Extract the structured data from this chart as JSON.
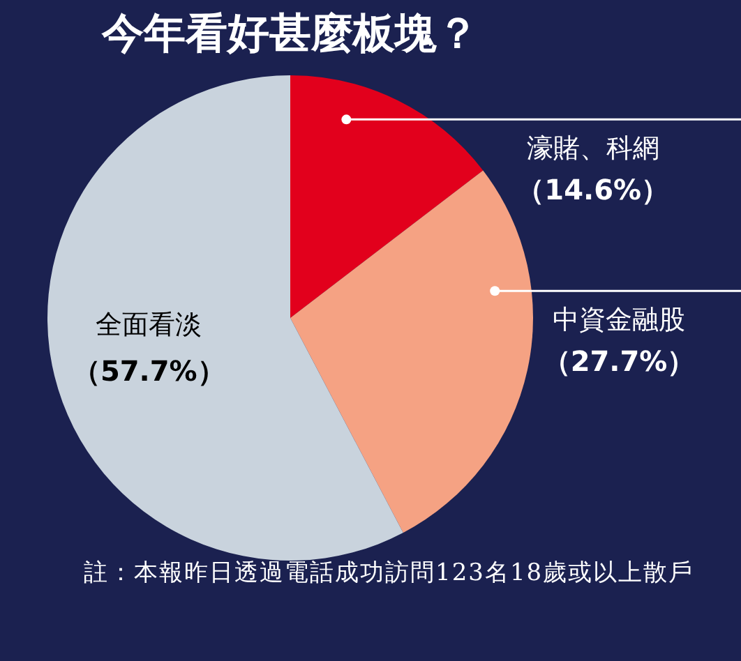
{
  "chart_data": {
    "type": "pie",
    "title": "今年看好甚麼板塊？",
    "categories": [
      "濠賭、科網",
      "中資金融股",
      "全面看淡"
    ],
    "values": [
      14.6,
      27.7,
      57.7
    ],
    "colors": [
      "#e2001c",
      "#f5a283",
      "#c9d3dd"
    ],
    "value_labels": [
      "（14.6%）",
      "（27.7%）",
      "（57.7%）"
    ],
    "legend": false,
    "annotations": [
      "註：本報昨日透過電話成功訪問123名18歲或以上散戶"
    ]
  }
}
